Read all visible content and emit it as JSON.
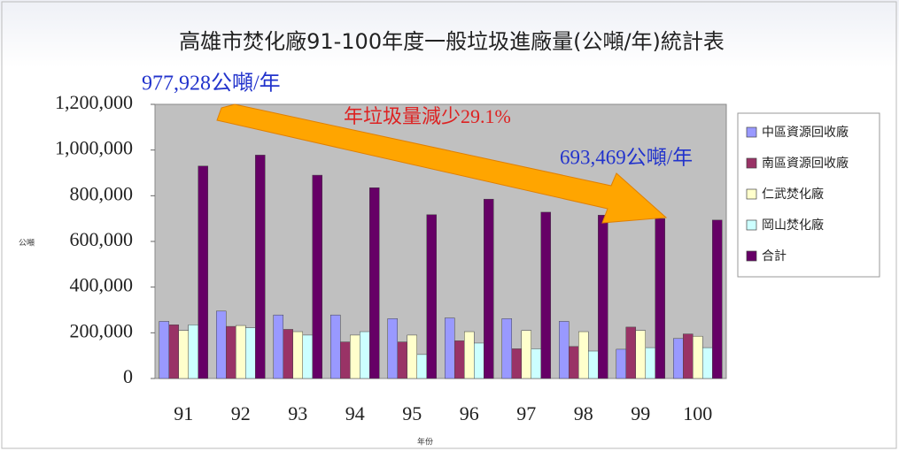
{
  "chart_data": {
    "type": "bar",
    "title": "高雄市焚化廠91-100年度一般垃圾進廠量(公噸/年)統計表",
    "y_label": "公噸",
    "x_label": "年份",
    "annotations": [
      "977,928公噸/年",
      "693,469公噸/年",
      "年垃圾量減少29.1%"
    ],
    "categories": [
      "91",
      "92",
      "93",
      "94",
      "95",
      "96",
      "97",
      "98",
      "99",
      "100"
    ],
    "series": [
      {
        "name": "中區資源回收廠",
        "color": "#9999ff",
        "values": [
          250000,
          295000,
          278000,
          278000,
          262000,
          265000,
          262000,
          250000,
          128000,
          175000
        ]
      },
      {
        "name": "南區資源回收廠",
        "color": "#993366",
        "values": [
          235000,
          228000,
          215000,
          160000,
          160000,
          165000,
          130000,
          140000,
          225000,
          195000
        ]
      },
      {
        "name": "仁武焚化廠",
        "color": "#ffffcc",
        "values": [
          210000,
          232000,
          205000,
          190000,
          190000,
          205000,
          210000,
          205000,
          210000,
          185000
        ]
      },
      {
        "name": "岡山焚化廠",
        "color": "#ccffff",
        "values": [
          235000,
          222000,
          190000,
          205000,
          105000,
          155000,
          130000,
          120000,
          135000,
          135000
        ]
      },
      {
        "name": "合計",
        "color": "#660066",
        "values": [
          930000,
          977928,
          890000,
          835000,
          717000,
          785000,
          728000,
          715000,
          700000,
          693469
        ]
      }
    ],
    "ylim": [
      0,
      1200000
    ],
    "yticks": [
      0,
      {
        "value": 200000,
        "label": "200,000"
      },
      {
        "value": 400000,
        "label": "400,000"
      },
      {
        "value": 600000,
        "label": "600,000"
      },
      {
        "value": 800000,
        "label": "800,000"
      },
      {
        "value": 1000000,
        "label": "1,000,000"
      },
      {
        "value": 1200000,
        "label": "1,200,000"
      }
    ],
    "legend": "right"
  }
}
